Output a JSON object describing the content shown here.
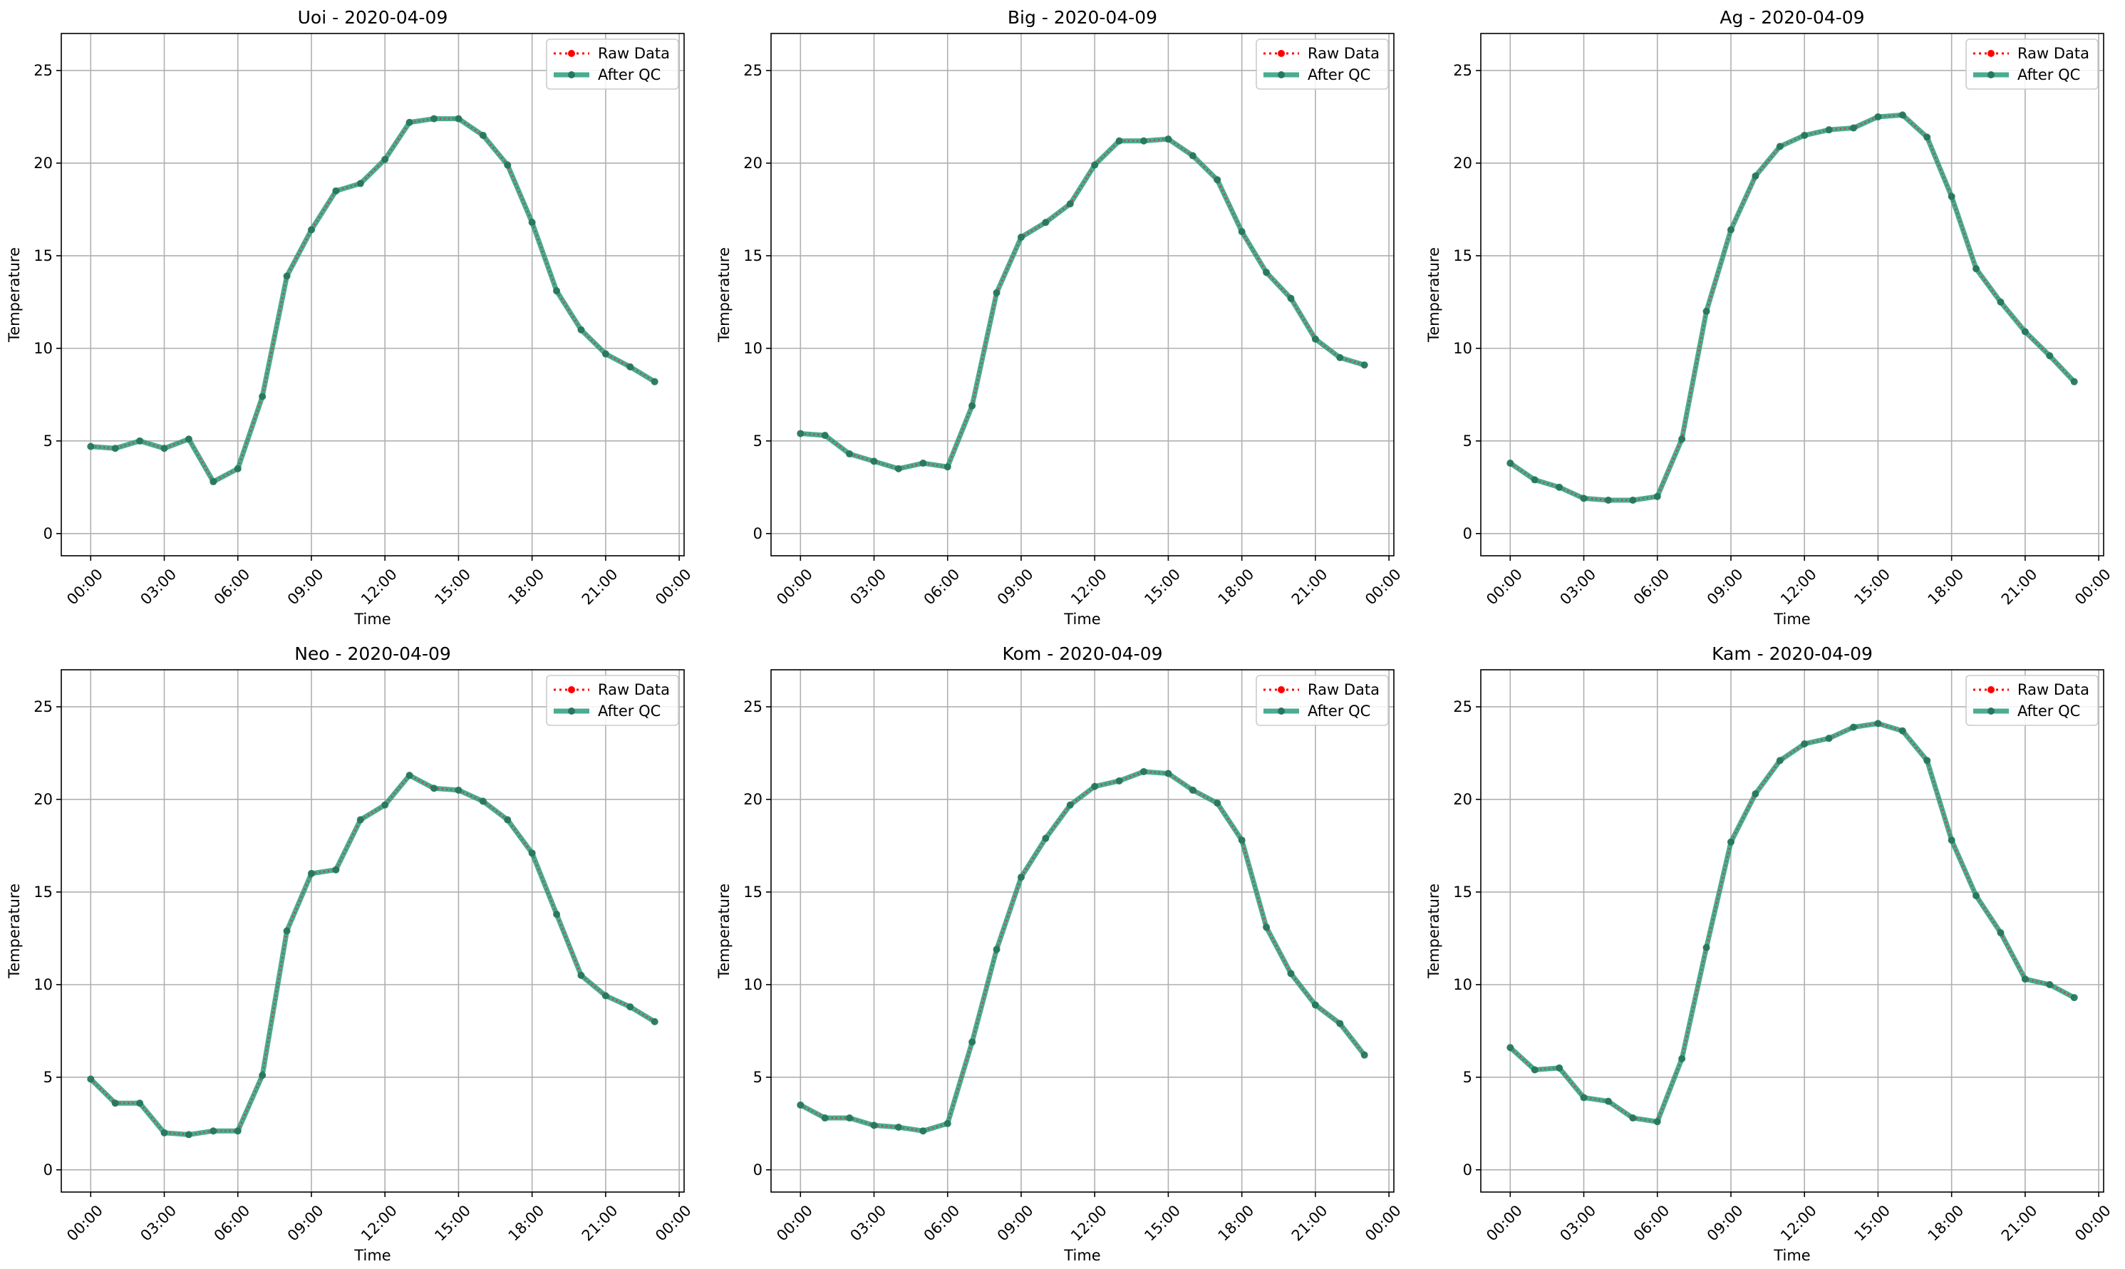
{
  "figure": {
    "colors": {
      "raw": "#ff0000",
      "qc": "#2a9d7c",
      "qc_marker": "#26775d",
      "grid": "#b0b0b0",
      "frame": "#000000"
    }
  },
  "chart_data": [
    {
      "type": "line",
      "title": "Uoi - 2020-04-09",
      "xlabel": "Time",
      "ylabel": "Temperature",
      "x": [
        0,
        1,
        2,
        3,
        4,
        5,
        6,
        7,
        8,
        9,
        10,
        11,
        12,
        13,
        14,
        15,
        16,
        17,
        18,
        19,
        20,
        21,
        22,
        23
      ],
      "xticks": [
        "00:00",
        "03:00",
        "06:00",
        "09:00",
        "12:00",
        "15:00",
        "18:00",
        "21:00",
        "00:00"
      ],
      "yticks": [
        "0",
        "5",
        "10",
        "15",
        "20",
        "25"
      ],
      "xlim": [
        -1.2,
        24.2
      ],
      "ylim": [
        -1.2,
        27
      ],
      "grid": true,
      "legend_position": "top-right",
      "series": [
        {
          "name": "Raw Data",
          "style": "dotted",
          "values": [
            4.7,
            4.6,
            5.0,
            4.6,
            5.1,
            2.8,
            3.5,
            7.4,
            13.9,
            16.4,
            18.5,
            18.9,
            20.2,
            22.2,
            22.4,
            22.4,
            21.5,
            19.9,
            16.8,
            13.1,
            11.0,
            9.7,
            9.0,
            8.2
          ]
        },
        {
          "name": "After QC",
          "style": "solid",
          "values": [
            4.7,
            4.6,
            5.0,
            4.6,
            5.1,
            2.8,
            3.5,
            7.4,
            13.9,
            16.4,
            18.5,
            18.9,
            20.2,
            22.2,
            22.4,
            22.4,
            21.5,
            19.9,
            16.8,
            13.1,
            11.0,
            9.7,
            9.0,
            8.2
          ]
        }
      ]
    },
    {
      "type": "line",
      "title": "Big - 2020-04-09",
      "xlabel": "Time",
      "ylabel": "Temperature",
      "x": [
        0,
        1,
        2,
        3,
        4,
        5,
        6,
        7,
        8,
        9,
        10,
        11,
        12,
        13,
        14,
        15,
        16,
        17,
        18,
        19,
        20,
        21,
        22,
        23
      ],
      "xticks": [
        "00:00",
        "03:00",
        "06:00",
        "09:00",
        "12:00",
        "15:00",
        "18:00",
        "21:00",
        "00:00"
      ],
      "yticks": [
        "0",
        "5",
        "10",
        "15",
        "20",
        "25"
      ],
      "xlim": [
        -1.2,
        24.2
      ],
      "ylim": [
        -1.2,
        27
      ],
      "grid": true,
      "legend_position": "top-right",
      "series": [
        {
          "name": "Raw Data",
          "style": "dotted",
          "values": [
            5.4,
            5.3,
            4.3,
            3.9,
            3.5,
            3.8,
            3.6,
            6.9,
            13.0,
            16.0,
            16.8,
            17.8,
            19.9,
            21.2,
            21.2,
            21.3,
            20.4,
            19.1,
            16.3,
            14.1,
            12.7,
            10.5,
            9.5,
            9.1
          ]
        },
        {
          "name": "After QC",
          "style": "solid",
          "values": [
            5.4,
            5.3,
            4.3,
            3.9,
            3.5,
            3.8,
            3.6,
            6.9,
            13.0,
            16.0,
            16.8,
            17.8,
            19.9,
            21.2,
            21.2,
            21.3,
            20.4,
            19.1,
            16.3,
            14.1,
            12.7,
            10.5,
            9.5,
            9.1
          ]
        }
      ]
    },
    {
      "type": "line",
      "title": "Ag - 2020-04-09",
      "xlabel": "Time",
      "ylabel": "Temperature",
      "x": [
        0,
        1,
        2,
        3,
        4,
        5,
        6,
        7,
        8,
        9,
        10,
        11,
        12,
        13,
        14,
        15,
        16,
        17,
        18,
        19,
        20,
        21,
        22,
        23
      ],
      "xticks": [
        "00:00",
        "03:00",
        "06:00",
        "09:00",
        "12:00",
        "15:00",
        "18:00",
        "21:00",
        "00:00"
      ],
      "yticks": [
        "0",
        "5",
        "10",
        "15",
        "20",
        "25"
      ],
      "xlim": [
        -1.2,
        24.2
      ],
      "ylim": [
        -1.2,
        27
      ],
      "grid": true,
      "legend_position": "top-right",
      "series": [
        {
          "name": "Raw Data",
          "style": "dotted",
          "values": [
            3.8,
            2.9,
            2.5,
            1.9,
            1.8,
            1.8,
            2.0,
            5.1,
            12.0,
            16.4,
            19.3,
            20.9,
            21.5,
            21.8,
            21.9,
            22.5,
            22.6,
            21.4,
            18.2,
            14.3,
            12.5,
            10.9,
            9.6,
            8.2
          ]
        },
        {
          "name": "After QC",
          "style": "solid",
          "values": [
            3.8,
            2.9,
            2.5,
            1.9,
            1.8,
            1.8,
            2.0,
            5.1,
            12.0,
            16.4,
            19.3,
            20.9,
            21.5,
            21.8,
            21.9,
            22.5,
            22.6,
            21.4,
            18.2,
            14.3,
            12.5,
            10.9,
            9.6,
            8.2
          ]
        }
      ]
    },
    {
      "type": "line",
      "title": "Neo - 2020-04-09",
      "xlabel": "Time",
      "ylabel": "Temperature",
      "x": [
        0,
        1,
        2,
        3,
        4,
        5,
        6,
        7,
        8,
        9,
        10,
        11,
        12,
        13,
        14,
        15,
        16,
        17,
        18,
        19,
        20,
        21,
        22,
        23
      ],
      "xticks": [
        "00:00",
        "03:00",
        "06:00",
        "09:00",
        "12:00",
        "15:00",
        "18:00",
        "21:00",
        "00:00"
      ],
      "yticks": [
        "0",
        "5",
        "10",
        "15",
        "20",
        "25"
      ],
      "xlim": [
        -1.2,
        24.2
      ],
      "ylim": [
        -1.2,
        27
      ],
      "grid": true,
      "legend_position": "top-right",
      "series": [
        {
          "name": "Raw Data",
          "style": "dotted",
          "values": [
            4.9,
            3.6,
            3.6,
            2.0,
            1.9,
            2.1,
            2.1,
            5.1,
            12.9,
            16.0,
            16.2,
            18.9,
            19.7,
            21.3,
            20.6,
            20.5,
            19.9,
            18.9,
            17.1,
            13.8,
            10.5,
            9.4,
            8.8,
            8.0
          ]
        },
        {
          "name": "After QC",
          "style": "solid",
          "values": [
            4.9,
            3.6,
            3.6,
            2.0,
            1.9,
            2.1,
            2.1,
            5.1,
            12.9,
            16.0,
            16.2,
            18.9,
            19.7,
            21.3,
            20.6,
            20.5,
            19.9,
            18.9,
            17.1,
            13.8,
            10.5,
            9.4,
            8.8,
            8.0
          ]
        }
      ]
    },
    {
      "type": "line",
      "title": "Kom - 2020-04-09",
      "xlabel": "Time",
      "ylabel": "Temperature",
      "x": [
        0,
        1,
        2,
        3,
        4,
        5,
        6,
        7,
        8,
        9,
        10,
        11,
        12,
        13,
        14,
        15,
        16,
        17,
        18,
        19,
        20,
        21,
        22,
        23
      ],
      "xticks": [
        "00:00",
        "03:00",
        "06:00",
        "09:00",
        "12:00",
        "15:00",
        "18:00",
        "21:00",
        "00:00"
      ],
      "yticks": [
        "0",
        "5",
        "10",
        "15",
        "20",
        "25"
      ],
      "xlim": [
        -1.2,
        24.2
      ],
      "ylim": [
        -1.2,
        27
      ],
      "grid": true,
      "legend_position": "top-right",
      "series": [
        {
          "name": "Raw Data",
          "style": "dotted",
          "values": [
            3.5,
            2.8,
            2.8,
            2.4,
            2.3,
            2.1,
            2.5,
            6.9,
            11.9,
            15.8,
            17.9,
            19.7,
            20.7,
            21.0,
            21.5,
            21.4,
            20.5,
            19.8,
            17.8,
            13.1,
            10.6,
            8.9,
            7.9,
            6.2
          ]
        },
        {
          "name": "After QC",
          "style": "solid",
          "values": [
            3.5,
            2.8,
            2.8,
            2.4,
            2.3,
            2.1,
            2.5,
            6.9,
            11.9,
            15.8,
            17.9,
            19.7,
            20.7,
            21.0,
            21.5,
            21.4,
            20.5,
            19.8,
            17.8,
            13.1,
            10.6,
            8.9,
            7.9,
            6.2
          ]
        }
      ]
    },
    {
      "type": "line",
      "title": "Kam - 2020-04-09",
      "xlabel": "Time",
      "ylabel": "Temperature",
      "x": [
        0,
        1,
        2,
        3,
        4,
        5,
        6,
        7,
        8,
        9,
        10,
        11,
        12,
        13,
        14,
        15,
        16,
        17,
        18,
        19,
        20,
        21,
        22,
        23
      ],
      "xticks": [
        "00:00",
        "03:00",
        "06:00",
        "09:00",
        "12:00",
        "15:00",
        "18:00",
        "21:00",
        "00:00"
      ],
      "yticks": [
        "0",
        "5",
        "10",
        "15",
        "20",
        "25"
      ],
      "xlim": [
        -1.2,
        24.2
      ],
      "ylim": [
        -1.2,
        27
      ],
      "grid": true,
      "legend_position": "top-right",
      "series": [
        {
          "name": "Raw Data",
          "style": "dotted",
          "values": [
            6.6,
            5.4,
            5.5,
            3.9,
            3.7,
            2.8,
            2.6,
            6.0,
            12.0,
            17.7,
            20.3,
            22.1,
            23.0,
            23.3,
            23.9,
            24.1,
            23.7,
            22.1,
            17.8,
            14.8,
            12.8,
            10.3,
            10.0,
            9.3
          ]
        },
        {
          "name": "After QC",
          "style": "solid",
          "values": [
            6.6,
            5.4,
            5.5,
            3.9,
            3.7,
            2.8,
            2.6,
            6.0,
            12.0,
            17.7,
            20.3,
            22.1,
            23.0,
            23.3,
            23.9,
            24.1,
            23.7,
            22.1,
            17.8,
            14.8,
            12.8,
            10.3,
            10.0,
            9.3
          ]
        }
      ]
    }
  ]
}
